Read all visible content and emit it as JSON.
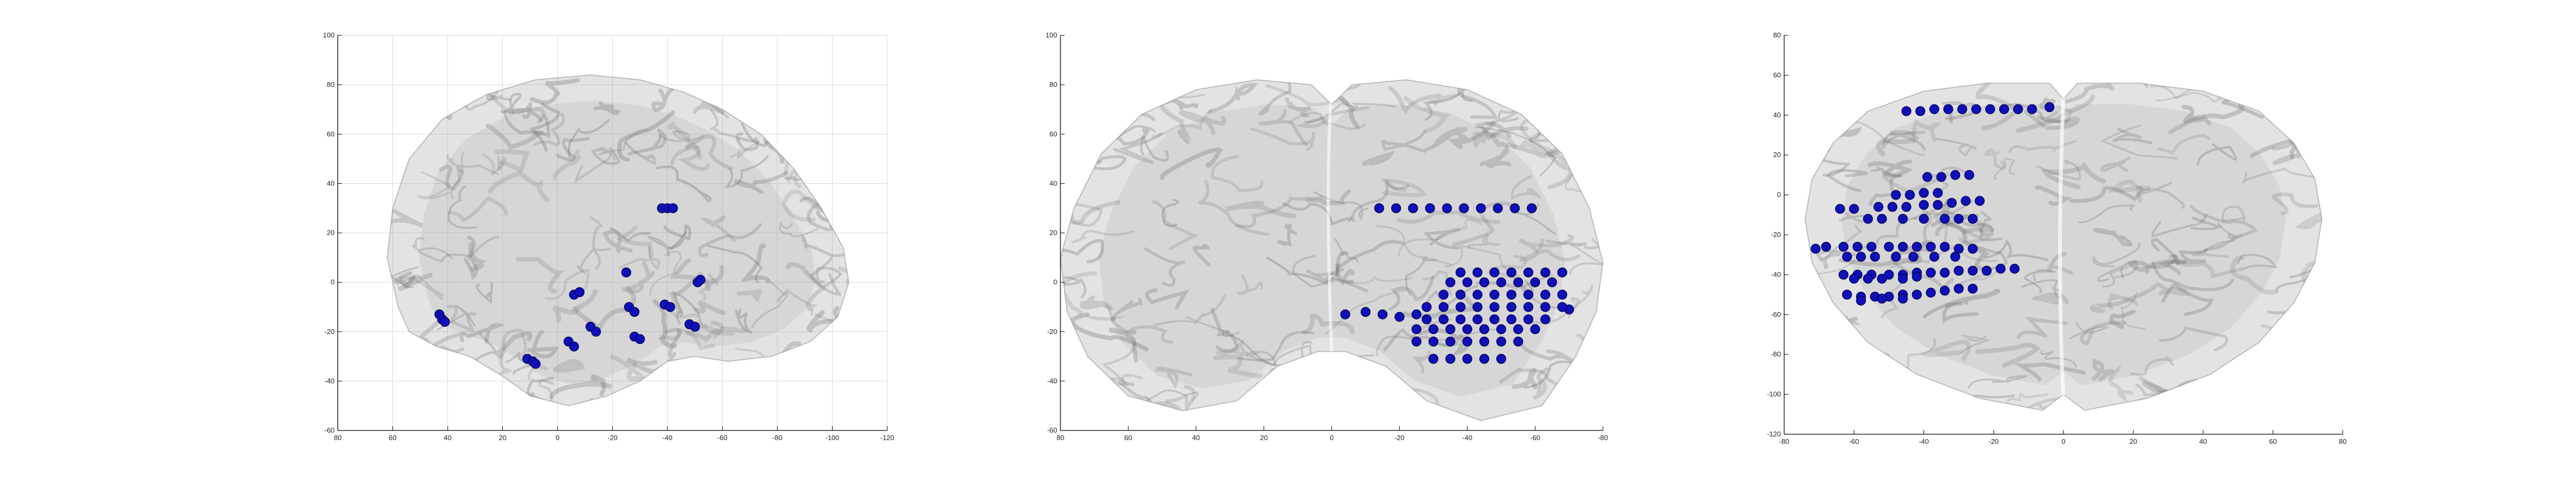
{
  "colors": {
    "electrode": "#1010b8",
    "electrode_dark": "#050560",
    "brain_fill": "#9a9a9a",
    "brain_fold": "#6f6f6f",
    "grid": "#d9d9d9"
  },
  "chart_data": [
    {
      "type": "scatter",
      "view": "sagittal",
      "title": "",
      "xlabel": "",
      "ylabel": "",
      "xlim": [
        80,
        -120
      ],
      "ylim": [
        -60,
        100
      ],
      "x_reversed": true,
      "grid": true,
      "x_ticks": [
        "80",
        "60",
        "40",
        "20",
        "0",
        "-20",
        "-40",
        "-60",
        "-80",
        "-100",
        "-120"
      ],
      "y_ticks": [
        "100",
        "80",
        "60",
        "40",
        "20",
        "0",
        "-20",
        "-40",
        "-60"
      ],
      "electrodes": [
        {
          "x": 43,
          "y": -13
        },
        {
          "x": 42,
          "y": -15
        },
        {
          "x": 41,
          "y": -16
        },
        {
          "x": 11,
          "y": -31
        },
        {
          "x": 9,
          "y": -32
        },
        {
          "x": 8,
          "y": -33
        },
        {
          "x": -6,
          "y": -5
        },
        {
          "x": -8,
          "y": -4
        },
        {
          "x": -4,
          "y": -24
        },
        {
          "x": -6,
          "y": -26
        },
        {
          "x": -12,
          "y": -18
        },
        {
          "x": -14,
          "y": -20
        },
        {
          "x": -25,
          "y": 4
        },
        {
          "x": -26,
          "y": -10
        },
        {
          "x": -28,
          "y": -12
        },
        {
          "x": -28,
          "y": -22
        },
        {
          "x": -30,
          "y": -23
        },
        {
          "x": -38,
          "y": 30
        },
        {
          "x": -40,
          "y": 30
        },
        {
          "x": -42,
          "y": 30
        },
        {
          "x": -39,
          "y": -9
        },
        {
          "x": -41,
          "y": -10
        },
        {
          "x": -48,
          "y": -17
        },
        {
          "x": -50,
          "y": -18
        },
        {
          "x": -51,
          "y": 0
        },
        {
          "x": -52,
          "y": 1
        }
      ]
    },
    {
      "type": "scatter",
      "view": "coronal",
      "title": "",
      "xlabel": "",
      "ylabel": "",
      "xlim": [
        80,
        -80
      ],
      "ylim": [
        -60,
        100
      ],
      "x_reversed": true,
      "grid": false,
      "x_ticks": [
        "80",
        "60",
        "40",
        "20",
        "0",
        "-20",
        "-40",
        "-60",
        "-80"
      ],
      "y_ticks": [
        "100",
        "80",
        "60",
        "40",
        "20",
        "0",
        "-20",
        "-40",
        "-60"
      ],
      "electrodes": [
        {
          "x": -14,
          "y": 30
        },
        {
          "x": -19,
          "y": 30
        },
        {
          "x": -24,
          "y": 30
        },
        {
          "x": -29,
          "y": 30
        },
        {
          "x": -34,
          "y": 30
        },
        {
          "x": -39,
          "y": 30
        },
        {
          "x": -44,
          "y": 30
        },
        {
          "x": -49,
          "y": 30
        },
        {
          "x": -54,
          "y": 30
        },
        {
          "x": -59,
          "y": 30
        },
        {
          "x": -4,
          "y": -13
        },
        {
          "x": -10,
          "y": -12
        },
        {
          "x": -15,
          "y": -13
        },
        {
          "x": -20,
          "y": -14
        },
        {
          "x": -25,
          "y": -13
        },
        {
          "x": -70,
          "y": -11
        },
        {
          "x": -38,
          "y": 4
        },
        {
          "x": -43,
          "y": 4
        },
        {
          "x": -48,
          "y": 4
        },
        {
          "x": -53,
          "y": 4
        },
        {
          "x": -58,
          "y": 4
        },
        {
          "x": -63,
          "y": 4
        },
        {
          "x": -68,
          "y": 4
        },
        {
          "x": -35,
          "y": 0
        },
        {
          "x": -40,
          "y": 0
        },
        {
          "x": -45,
          "y": 0
        },
        {
          "x": -50,
          "y": 0
        },
        {
          "x": -55,
          "y": 0
        },
        {
          "x": -60,
          "y": 0
        },
        {
          "x": -65,
          "y": 0
        },
        {
          "x": -33,
          "y": -5
        },
        {
          "x": -38,
          "y": -5
        },
        {
          "x": -43,
          "y": -5
        },
        {
          "x": -48,
          "y": -5
        },
        {
          "x": -53,
          "y": -5
        },
        {
          "x": -58,
          "y": -5
        },
        {
          "x": -63,
          "y": -5
        },
        {
          "x": -68,
          "y": -5
        },
        {
          "x": -28,
          "y": -10
        },
        {
          "x": -33,
          "y": -10
        },
        {
          "x": -38,
          "y": -10
        },
        {
          "x": -43,
          "y": -10
        },
        {
          "x": -48,
          "y": -10
        },
        {
          "x": -53,
          "y": -10
        },
        {
          "x": -58,
          "y": -10
        },
        {
          "x": -63,
          "y": -10
        },
        {
          "x": -68,
          "y": -10
        },
        {
          "x": -28,
          "y": -15
        },
        {
          "x": -33,
          "y": -15
        },
        {
          "x": -38,
          "y": -15
        },
        {
          "x": -43,
          "y": -15
        },
        {
          "x": -48,
          "y": -15
        },
        {
          "x": -53,
          "y": -15
        },
        {
          "x": -58,
          "y": -15
        },
        {
          "x": -63,
          "y": -15
        },
        {
          "x": -25,
          "y": -19
        },
        {
          "x": -30,
          "y": -19
        },
        {
          "x": -35,
          "y": -19
        },
        {
          "x": -40,
          "y": -19
        },
        {
          "x": -45,
          "y": -19
        },
        {
          "x": -50,
          "y": -19
        },
        {
          "x": -55,
          "y": -19
        },
        {
          "x": -60,
          "y": -19
        },
        {
          "x": -25,
          "y": -24
        },
        {
          "x": -30,
          "y": -24
        },
        {
          "x": -35,
          "y": -24
        },
        {
          "x": -40,
          "y": -24
        },
        {
          "x": -45,
          "y": -24
        },
        {
          "x": -50,
          "y": -24
        },
        {
          "x": -55,
          "y": -24
        },
        {
          "x": -30,
          "y": -31
        },
        {
          "x": -35,
          "y": -31
        },
        {
          "x": -40,
          "y": -31
        },
        {
          "x": -45,
          "y": -31
        },
        {
          "x": -50,
          "y": -31
        }
      ]
    },
    {
      "type": "scatter",
      "view": "axial",
      "title": "",
      "xlabel": "",
      "ylabel": "",
      "xlim": [
        -80,
        80
      ],
      "ylim": [
        -120,
        80
      ],
      "x_reversed": false,
      "grid": false,
      "x_ticks": [
        "-80",
        "-60",
        "-40",
        "-20",
        "0",
        "20",
        "40",
        "60",
        "80"
      ],
      "y_ticks": [
        "80",
        "60",
        "40",
        "20",
        "0",
        "-20",
        "-40",
        "-60",
        "-80",
        "-100",
        "-120"
      ],
      "electrodes": [
        {
          "x": -45,
          "y": 42
        },
        {
          "x": -41,
          "y": 42
        },
        {
          "x": -37,
          "y": 43
        },
        {
          "x": -33,
          "y": 43
        },
        {
          "x": -29,
          "y": 43
        },
        {
          "x": -25,
          "y": 43
        },
        {
          "x": -21,
          "y": 43
        },
        {
          "x": -17,
          "y": 43
        },
        {
          "x": -13,
          "y": 43
        },
        {
          "x": -9,
          "y": 43
        },
        {
          "x": -4,
          "y": 44
        },
        {
          "x": -39,
          "y": 9
        },
        {
          "x": -35,
          "y": 9
        },
        {
          "x": -31,
          "y": 10
        },
        {
          "x": -27,
          "y": 10
        },
        {
          "x": -48,
          "y": 0
        },
        {
          "x": -44,
          "y": 0
        },
        {
          "x": -40,
          "y": 1
        },
        {
          "x": -36,
          "y": 1
        },
        {
          "x": -64,
          "y": -7
        },
        {
          "x": -60,
          "y": -7
        },
        {
          "x": -53,
          "y": -6
        },
        {
          "x": -49,
          "y": -6
        },
        {
          "x": -45,
          "y": -6
        },
        {
          "x": -40,
          "y": -5
        },
        {
          "x": -36,
          "y": -5
        },
        {
          "x": -32,
          "y": -4
        },
        {
          "x": -28,
          "y": -3
        },
        {
          "x": -24,
          "y": -3
        },
        {
          "x": -56,
          "y": -12
        },
        {
          "x": -52,
          "y": -12
        },
        {
          "x": -46,
          "y": -12
        },
        {
          "x": -40,
          "y": -12
        },
        {
          "x": -34,
          "y": -12
        },
        {
          "x": -30,
          "y": -12
        },
        {
          "x": -26,
          "y": -12
        },
        {
          "x": -71,
          "y": -27
        },
        {
          "x": -68,
          "y": -26
        },
        {
          "x": -63,
          "y": -26
        },
        {
          "x": -59,
          "y": -26
        },
        {
          "x": -55,
          "y": -26
        },
        {
          "x": -50,
          "y": -26
        },
        {
          "x": -46,
          "y": -26
        },
        {
          "x": -42,
          "y": -26
        },
        {
          "x": -38,
          "y": -26
        },
        {
          "x": -34,
          "y": -26
        },
        {
          "x": -30,
          "y": -27
        },
        {
          "x": -26,
          "y": -27
        },
        {
          "x": -62,
          "y": -31
        },
        {
          "x": -58,
          "y": -31
        },
        {
          "x": -54,
          "y": -31
        },
        {
          "x": -48,
          "y": -31
        },
        {
          "x": -43,
          "y": -31
        },
        {
          "x": -37,
          "y": -31
        },
        {
          "x": -31,
          "y": -31
        },
        {
          "x": -63,
          "y": -40
        },
        {
          "x": -59,
          "y": -40
        },
        {
          "x": -55,
          "y": -40
        },
        {
          "x": -50,
          "y": -40
        },
        {
          "x": -46,
          "y": -40
        },
        {
          "x": -42,
          "y": -39
        },
        {
          "x": -38,
          "y": -39
        },
        {
          "x": -34,
          "y": -39
        },
        {
          "x": -30,
          "y": -38
        },
        {
          "x": -26,
          "y": -38
        },
        {
          "x": -22,
          "y": -38
        },
        {
          "x": -18,
          "y": -37
        },
        {
          "x": -14,
          "y": -37
        },
        {
          "x": -60,
          "y": -42
        },
        {
          "x": -56,
          "y": -42
        },
        {
          "x": -52,
          "y": -42
        },
        {
          "x": -46,
          "y": -42
        },
        {
          "x": -42,
          "y": -41
        },
        {
          "x": -62,
          "y": -50
        },
        {
          "x": -58,
          "y": -51
        },
        {
          "x": -54,
          "y": -51
        },
        {
          "x": -50,
          "y": -51
        },
        {
          "x": -46,
          "y": -50
        },
        {
          "x": -42,
          "y": -50
        },
        {
          "x": -38,
          "y": -49
        },
        {
          "x": -34,
          "y": -48
        },
        {
          "x": -30,
          "y": -47
        },
        {
          "x": -26,
          "y": -47
        },
        {
          "x": -58,
          "y": -53
        },
        {
          "x": -52,
          "y": -52
        },
        {
          "x": -46,
          "y": -52
        }
      ]
    }
  ]
}
